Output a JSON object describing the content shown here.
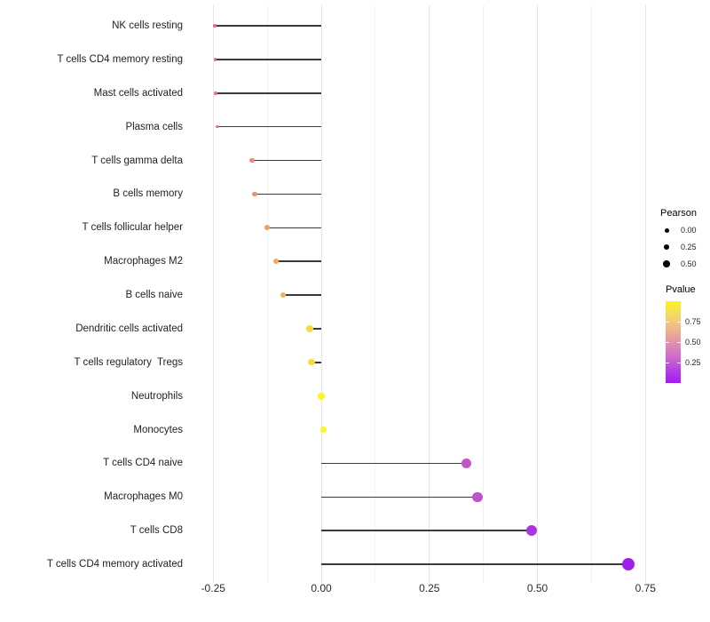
{
  "chart_data": {
    "type": "scatter",
    "subtype": "lollipop",
    "orientation": "horizontal",
    "title": "",
    "xlabel": "",
    "ylabel": "",
    "grid": {
      "on": true,
      "major_color": "#e5e5e5",
      "minor_color": "#f2f2f2"
    },
    "stem_color": "#3a3a3a",
    "baseline_value": 0,
    "x_axis": {
      "range": [
        -0.305,
        0.785
      ],
      "ticks": [
        {
          "label": "-0.25",
          "value": -0.25
        },
        {
          "label": "0.00",
          "value": 0.0
        },
        {
          "label": "0.25",
          "value": 0.25
        },
        {
          "label": "0.50",
          "value": 0.5
        },
        {
          "label": "0.75",
          "value": 0.75
        }
      ],
      "minor_ticks": [
        -0.125,
        0.125,
        0.375,
        0.625
      ]
    },
    "points": [
      {
        "label": "NK cells resting",
        "pearson": -0.246,
        "pvalue": 0.52,
        "color": "#E26796"
      },
      {
        "label": "T cells CD4 memory resting",
        "pearson": -0.245,
        "pvalue": 0.52,
        "color": "#E16898"
      },
      {
        "label": "Mast cells activated",
        "pearson": -0.244,
        "pvalue": 0.53,
        "color": "#E06A9B"
      },
      {
        "label": "Plasma cells",
        "pearson": -0.24,
        "pvalue": 0.54,
        "color": "#E06E9F"
      },
      {
        "label": "T cells gamma delta",
        "pearson": -0.16,
        "pvalue": 0.63,
        "color": "#E78E70"
      },
      {
        "label": "B cells memory",
        "pearson": -0.154,
        "pvalue": 0.64,
        "color": "#E8926B"
      },
      {
        "label": "T cells follicular helper",
        "pearson": -0.125,
        "pvalue": 0.68,
        "color": "#EBA160"
      },
      {
        "label": "Macrophages M2",
        "pearson": -0.105,
        "pvalue": 0.7,
        "color": "#EDA95A"
      },
      {
        "label": "B cells naive",
        "pearson": -0.088,
        "pvalue": 0.72,
        "color": "#EFB356"
      },
      {
        "label": "Dendritic cells activated",
        "pearson": -0.027,
        "pvalue": 0.84,
        "color": "#F5DB3D"
      },
      {
        "label": "T cells regulatory  Tregs",
        "pearson": -0.023,
        "pvalue": 0.85,
        "color": "#F6DD3A"
      },
      {
        "label": "Neutrophils",
        "pearson": 0.0,
        "pvalue": 0.97,
        "color": "#FCF61D"
      },
      {
        "label": "Monocytes",
        "pearson": 0.005,
        "pvalue": 0.98,
        "color": "#FCF71C"
      },
      {
        "label": "T cells CD4 naive",
        "pearson": 0.335,
        "pvalue": 0.3,
        "color": "#BF57C7"
      },
      {
        "label": "Macrophages M0",
        "pearson": 0.361,
        "pvalue": 0.29,
        "color": "#BE53CA"
      },
      {
        "label": "T cells CD8",
        "pearson": 0.487,
        "pvalue": 0.16,
        "color": "#AC33DE"
      },
      {
        "label": "T cells CD4 memory activated",
        "pearson": 0.71,
        "pvalue": 0.04,
        "color": "#A21EEC"
      }
    ],
    "legend_pearson": {
      "title": "Pearson",
      "dot_color": "#000000",
      "items": [
        {
          "label": "0.00",
          "diameter": 5.0
        },
        {
          "label": "0.25",
          "diameter": 6.4
        },
        {
          "label": "0.50",
          "diameter": 7.6
        }
      ]
    },
    "legend_pvalue": {
      "title": "Pvalue",
      "gradient_top_to_bottom": [
        "#FBF620",
        "#F4D669",
        "#EDB28C",
        "#DE8FB2",
        "#CB66D2",
        "#B43BE7",
        "#A01BF2"
      ],
      "ticks": [
        {
          "label": "0.75",
          "frac_from_top": 0.25
        },
        {
          "label": "0.50",
          "frac_from_top": 0.5
        },
        {
          "label": "0.25",
          "frac_from_top": 0.75
        }
      ]
    }
  }
}
